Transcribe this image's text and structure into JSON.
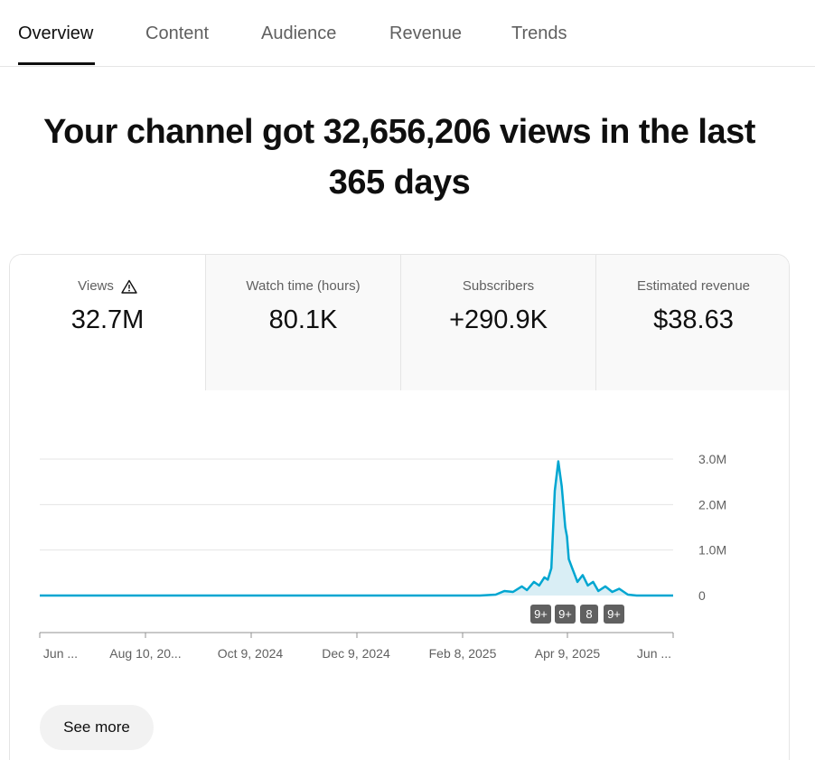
{
  "tabs": [
    {
      "label": "Overview",
      "active": true
    },
    {
      "label": "Content",
      "active": false
    },
    {
      "label": "Audience",
      "active": false
    },
    {
      "label": "Revenue",
      "active": false
    },
    {
      "label": "Trends",
      "active": false
    }
  ],
  "headline": {
    "line1": "Your channel got 32,656,206 views in the last",
    "line2": "365 days"
  },
  "metrics": [
    {
      "label": "Views",
      "value": "32.7M",
      "icon": "warning-icon"
    },
    {
      "label": "Watch time (hours)",
      "value": "80.1K"
    },
    {
      "label": "Subscribers",
      "value": "+290.9K"
    },
    {
      "label": "Estimated revenue",
      "value": "$38.63"
    }
  ],
  "chart_data": {
    "type": "area",
    "series": [
      {
        "values": [
          [
            "2024-06-11",
            0
          ],
          [
            "2025-02-19",
            0
          ],
          [
            "2025-02-28",
            0.02
          ],
          [
            "2025-03-05",
            0.1
          ],
          [
            "2025-03-10",
            0.08
          ],
          [
            "2025-03-15",
            0.2
          ],
          [
            "2025-03-18",
            0.12
          ],
          [
            "2025-03-22",
            0.3
          ],
          [
            "2025-03-25",
            0.22
          ],
          [
            "2025-03-28",
            0.4
          ],
          [
            "2025-03-30",
            0.35
          ],
          [
            "2025-04-01",
            0.6
          ],
          [
            "2025-04-03",
            2.3
          ],
          [
            "2025-04-05",
            2.95
          ],
          [
            "2025-04-07",
            2.4
          ],
          [
            "2025-04-09",
            1.5
          ],
          [
            "2025-04-10",
            1.3
          ],
          [
            "2025-04-11",
            0.8
          ],
          [
            "2025-04-13",
            0.6
          ],
          [
            "2025-04-16",
            0.3
          ],
          [
            "2025-04-19",
            0.45
          ],
          [
            "2025-04-22",
            0.22
          ],
          [
            "2025-04-25",
            0.3
          ],
          [
            "2025-04-28",
            0.1
          ],
          [
            "2025-05-02",
            0.2
          ],
          [
            "2025-05-06",
            0.08
          ],
          [
            "2025-05-10",
            0.15
          ],
          [
            "2025-05-15",
            0.02
          ],
          [
            "2025-05-20",
            0
          ],
          [
            "2025-06-10",
            0
          ]
        ]
      }
    ],
    "y_ticks": [
      "0",
      "1.0M",
      "2.0M",
      "3.0M"
    ],
    "ylim": [
      0,
      3
    ],
    "x_ticks": [
      "Jun ...",
      "Aug 10, 20...",
      "Oct 9, 2024",
      "Dec 9, 2024",
      "Feb 8, 2025",
      "Apr 9, 2025",
      "Jun ..."
    ],
    "markers": [
      "9+",
      "9+",
      "8",
      "9+"
    ],
    "line_color": "#00a6d1",
    "fill_color": "#d9eef5"
  },
  "see_more_label": "See more"
}
